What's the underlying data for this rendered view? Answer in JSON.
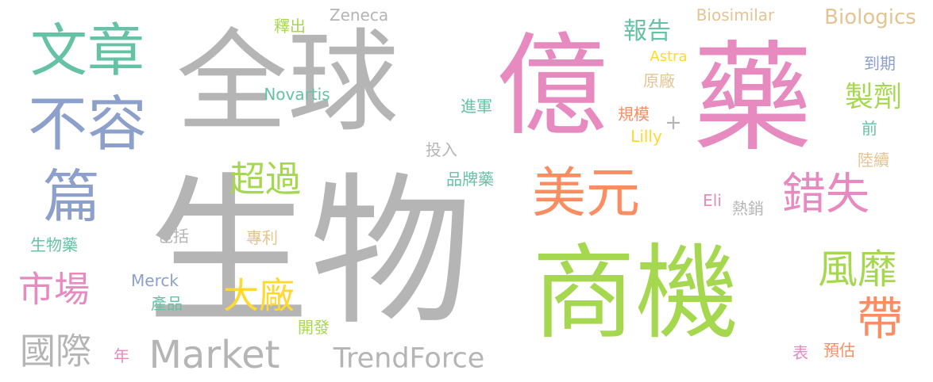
{
  "colors": {
    "background": "#ffffff",
    "gray": "#b5b5b5",
    "pink": "#e68ac0",
    "green": "#a6d84f",
    "teal": "#66c2a5",
    "orange": "#fc8d62",
    "blue": "#8da0cb",
    "yellow": "#ffd92f",
    "tan": "#e5c494"
  },
  "words": [
    {
      "text": "生物",
      "color": "gray"
    },
    {
      "text": "全球",
      "color": "gray"
    },
    {
      "text": "億",
      "color": "pink"
    },
    {
      "text": "藥",
      "color": "pink"
    },
    {
      "text": "商機",
      "color": "green"
    },
    {
      "text": "文章",
      "color": "teal"
    },
    {
      "text": "不容",
      "color": "blue"
    },
    {
      "text": "篇",
      "color": "blue"
    },
    {
      "text": "美元",
      "color": "orange"
    },
    {
      "text": "錯失",
      "color": "pink"
    },
    {
      "text": "風靡",
      "color": "green"
    },
    {
      "text": "帶",
      "color": "orange"
    },
    {
      "text": "超過",
      "color": "green"
    },
    {
      "text": "大廠",
      "color": "yellow"
    },
    {
      "text": "市場",
      "color": "pink"
    },
    {
      "text": "國際",
      "color": "gray"
    },
    {
      "text": "Market",
      "color": "gray"
    },
    {
      "text": "TrendForce",
      "color": "gray"
    },
    {
      "text": "製劑",
      "color": "green"
    },
    {
      "text": "報告",
      "color": "teal"
    },
    {
      "text": "Biologics",
      "color": "tan"
    },
    {
      "text": "Biosimilar",
      "color": "tan"
    },
    {
      "text": "Zeneca",
      "color": "gray"
    },
    {
      "text": "釋出",
      "color": "green"
    },
    {
      "text": "Novartis",
      "color": "teal"
    },
    {
      "text": "Astra",
      "color": "yellow"
    },
    {
      "text": "原廠",
      "color": "tan"
    },
    {
      "text": "到期",
      "color": "blue"
    },
    {
      "text": "規模",
      "color": "orange"
    },
    {
      "text": "+",
      "color": "gray"
    },
    {
      "text": "進軍",
      "color": "teal"
    },
    {
      "text": "Lilly",
      "color": "yellow"
    },
    {
      "text": "前",
      "color": "teal"
    },
    {
      "text": "投入",
      "color": "gray"
    },
    {
      "text": "品牌藥",
      "color": "teal"
    },
    {
      "text": "陸續",
      "color": "tan"
    },
    {
      "text": "Eli",
      "color": "pink"
    },
    {
      "text": "熱銷",
      "color": "gray"
    },
    {
      "text": "包括",
      "color": "gray"
    },
    {
      "text": "專利",
      "color": "tan"
    },
    {
      "text": "生物藥",
      "color": "teal"
    },
    {
      "text": "Merck",
      "color": "blue"
    },
    {
      "text": "產品",
      "color": "teal"
    },
    {
      "text": "開發",
      "color": "green"
    },
    {
      "text": "年",
      "color": "pink"
    },
    {
      "text": "表",
      "color": "pink"
    },
    {
      "text": "預估",
      "color": "orange"
    }
  ]
}
